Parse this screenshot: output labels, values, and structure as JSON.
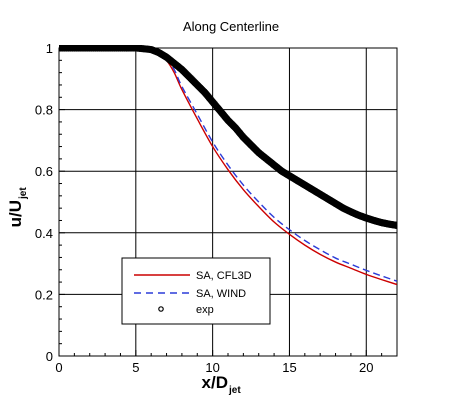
{
  "chart_data": {
    "type": "line",
    "title": "Along Centerline",
    "xlabel": {
      "main": "x/D",
      "sub": "jet"
    },
    "ylabel": {
      "main": "u/U",
      "sub": "jet"
    },
    "xlim": [
      0,
      22
    ],
    "ylim": [
      0,
      1
    ],
    "xticks": [
      0,
      5,
      10,
      15,
      20
    ],
    "yticks": [
      0,
      0.2,
      0.4,
      0.6,
      0.8,
      1
    ],
    "xtick_labels": [
      "0",
      "5",
      "10",
      "15",
      "20"
    ],
    "ytick_labels": [
      "0",
      "0.2",
      "0.4",
      "0.6",
      "0.8",
      "1"
    ],
    "grid": true,
    "legend_position": "lower-left",
    "series": [
      {
        "name": "SA, CFL3D",
        "style": "solid",
        "color": "#cc0000",
        "x": [
          0,
          5,
          6,
          6.5,
          7,
          7.5,
          8,
          9,
          10,
          11,
          12,
          13,
          14,
          15,
          16,
          17,
          18,
          19,
          20,
          21,
          22
        ],
        "y": [
          1.0,
          1.0,
          0.995,
          0.985,
          0.96,
          0.92,
          0.865,
          0.77,
          0.68,
          0.605,
          0.54,
          0.485,
          0.435,
          0.395,
          0.36,
          0.33,
          0.305,
          0.285,
          0.265,
          0.248,
          0.232
        ]
      },
      {
        "name": "SA, WIND",
        "style": "dashed",
        "color": "#2b3bd8",
        "x": [
          0,
          5,
          6,
          6.5,
          7,
          7.5,
          8,
          9,
          10,
          11,
          12,
          13,
          14,
          15,
          16,
          17,
          18,
          19,
          20,
          21,
          22
        ],
        "y": [
          1.0,
          1.0,
          0.995,
          0.987,
          0.965,
          0.93,
          0.875,
          0.785,
          0.695,
          0.62,
          0.555,
          0.5,
          0.45,
          0.41,
          0.375,
          0.345,
          0.318,
          0.298,
          0.278,
          0.26,
          0.243
        ]
      },
      {
        "name": "exp",
        "style": "markers",
        "color": "#000000",
        "x": [
          0,
          1,
          2,
          3,
          4,
          5,
          6,
          6.5,
          7,
          7.5,
          8,
          8.5,
          9,
          9.5,
          10,
          10.5,
          11,
          11.5,
          12,
          12.5,
          13,
          13.5,
          14,
          14.5,
          15,
          15.5,
          16,
          16.5,
          17,
          17.5,
          18,
          18.5,
          19,
          19.5,
          20,
          20.5,
          21,
          21.5,
          22
        ],
        "y": [
          1.0,
          1.0,
          1.0,
          1.0,
          1.0,
          1.0,
          0.995,
          0.985,
          0.97,
          0.95,
          0.93,
          0.905,
          0.88,
          0.855,
          0.825,
          0.795,
          0.765,
          0.74,
          0.71,
          0.685,
          0.66,
          0.64,
          0.62,
          0.6,
          0.585,
          0.57,
          0.555,
          0.54,
          0.525,
          0.51,
          0.495,
          0.48,
          0.468,
          0.457,
          0.448,
          0.44,
          0.433,
          0.428,
          0.424
        ]
      }
    ]
  }
}
